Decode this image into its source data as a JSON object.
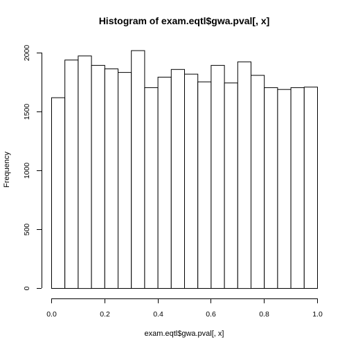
{
  "chart_data": {
    "type": "bar",
    "title": "Histogram of exam.eqtl$gwa.pval[, x]",
    "xlabel": "exam.eqtl$gwa.pval[, x]",
    "ylabel": "Frequency",
    "bin_edges": [
      0.0,
      0.05,
      0.1,
      0.15,
      0.2,
      0.25,
      0.3,
      0.35,
      0.4,
      0.45,
      0.5,
      0.55,
      0.6,
      0.65,
      0.7,
      0.75,
      0.8,
      0.85,
      0.9,
      0.95,
      1.0
    ],
    "values": [
      1620,
      1940,
      1975,
      1895,
      1865,
      1835,
      2020,
      1705,
      1795,
      1860,
      1820,
      1755,
      1895,
      1745,
      1925,
      1810,
      1705,
      1690,
      1705,
      1710
    ],
    "xlim": [
      0,
      1
    ],
    "ylim": [
      0,
      2000
    ],
    "xticks": [
      0,
      0.2,
      0.4,
      0.6,
      0.8,
      1
    ],
    "xtick_labels": [
      "0.0",
      "0.2",
      "0.4",
      "0.6",
      "0.8",
      "1.0"
    ],
    "yticks": [
      0,
      500,
      1000,
      1500,
      2000
    ],
    "ytick_labels": [
      "0",
      "500",
      "1000",
      "1500",
      "2000"
    ],
    "grid": false,
    "colors": {
      "bar_fill": "#ffffff",
      "bar_stroke": "#000000"
    }
  }
}
